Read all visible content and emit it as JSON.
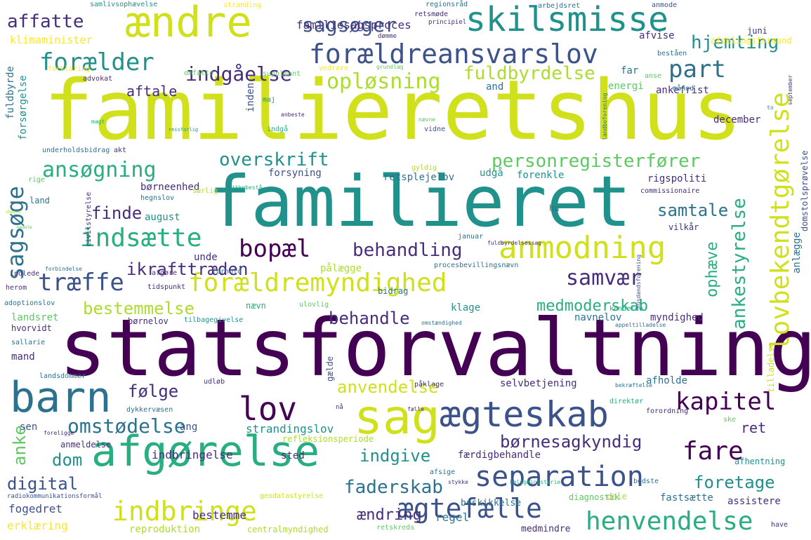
{
  "words": [
    "familieretshus",
    "statsforvaltning",
    "familieret",
    "sag",
    "barn",
    "afgørelse",
    "ægteskab",
    "ændre",
    "skilsmisse",
    "forældreansvarslov",
    "anmodning",
    "lov",
    "separation",
    "indbringe",
    "ægtefælle",
    "henvendelse",
    "lovbekendtgørelse",
    "forældremyndighed",
    "bopæl",
    "kapitel",
    "fare",
    "part",
    "forælder",
    "indgåelse",
    "opløsning",
    "fuldbyrdelse",
    "hjemting",
    "sagsøger",
    "affatte",
    "familiesagsproces",
    "klimaminister",
    "aftale",
    "ansøgning",
    "overskrift",
    "personregisterfører",
    "indsætte",
    "behandling",
    "samtale",
    "samvær",
    "træffe",
    "ikrafttræden",
    "finde",
    "august",
    "sagsøge",
    "behandle",
    "medmoderskab",
    "ankestyrelse",
    "ophæve",
    "bestemmelse",
    "anvendelse",
    "følge",
    "omstødelse",
    "børnesagkyndig",
    "strandingslov",
    "indgive",
    "faderskab",
    "foretage",
    "dom",
    "digital",
    "anke",
    "ændring",
    "regel",
    "fogedret",
    "erklæring",
    "reproduktion",
    "centralmyndighed",
    "medmindre",
    "retskreds",
    "bestemme",
    "beskikkelse",
    "assistere",
    "fastsætte",
    "dele",
    "refleksionsperiode",
    "indbringelse",
    "sted",
    "færdigbehandle",
    "ret",
    "selvbetjening",
    "afholde",
    "landsret",
    "hvorvidt",
    "børnelov",
    "tilbagegivelse",
    "navnelov",
    "myndighed",
    "klage",
    "nævn",
    "ulovlig",
    "bidrag",
    "pålægge",
    "adoptionslov",
    "herom",
    "mand",
    "sallarie",
    "udløb",
    "ang",
    "sen",
    "gælde",
    "fuldbyrde",
    "forsørgelse",
    "advokat",
    "forklaring",
    "omfatte",
    "suppleant",
    "and",
    "energi",
    "inden",
    "maj",
    "ankefrist",
    "december",
    "afvise",
    "juni",
    "afdelingsformand",
    "beståen",
    "måned",
    "anse",
    "far",
    "forsyning",
    "udgå",
    "forenkle",
    "rigspoliti",
    "retsplejelov",
    "gyldig",
    "børneenhed",
    "land",
    "hegnslov",
    "særlig",
    "commissionaire",
    "hu",
    "unde",
    "forhold",
    "tidspunkt",
    "afgøre",
    "indlede",
    "forbindelse",
    "kendelse",
    "procesbevillingsnævn",
    "fuldbyrdelsessag",
    "anlægge",
    "vilkår",
    "januar",
    "domstolsprøvelse",
    "tilladelse",
    "appeltilladelse",
    "omstændighed",
    "påklage",
    "fælle",
    "direktør",
    "bekræftelse",
    "forordning",
    "ske",
    "anmeldelse",
    "foreligge",
    "afsige",
    "stykke",
    "boligministerie",
    "bedste",
    "afhentning",
    "diagnostik",
    "geodatastyrelse",
    "radiokommunikationsformål",
    "have",
    "samlivsophævelse",
    "stranding",
    "regionsråd",
    "retsmøde",
    "principiel",
    "arbejdsret",
    "anmode",
    "dømme",
    "vedrøre",
    "grundlag",
    "september",
    "indgå",
    "nævne",
    "vidne",
    "reisforlig",
    "underholdsbidrag",
    "akt",
    "landboforening",
    "rige",
    "civilstyrelse",
    "ikkebestå",
    "husdandsforening",
    "landsdommer",
    "dykkervæsen",
    "nå",
    "to",
    "magt",
    "anbeste",
    "medele",
    "sheeve"
  ]
}
